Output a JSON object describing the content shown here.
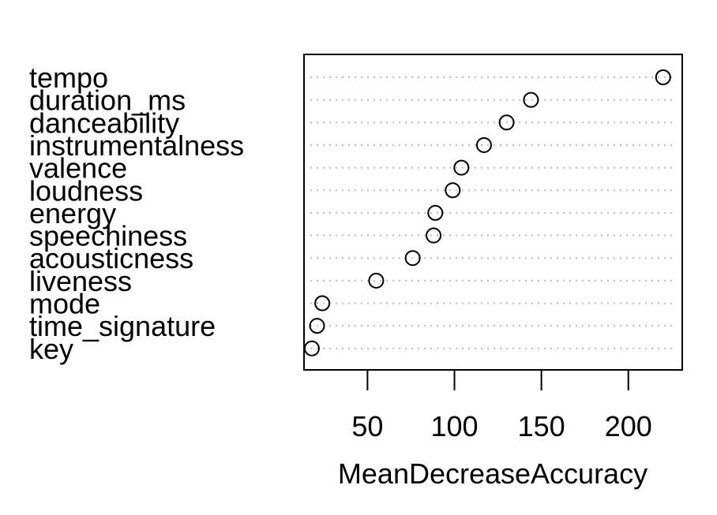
{
  "chart_data": {
    "type": "scatter",
    "title": "",
    "xlabel": "MeanDecreaseAccuracy",
    "ylabel": "",
    "categories": [
      "tempo",
      "duration_ms",
      "danceability",
      "instrumentalness",
      "valence",
      "loudness",
      "energy",
      "speechiness",
      "acousticness",
      "liveness",
      "mode",
      "time_signature",
      "key"
    ],
    "values": [
      220,
      144,
      130,
      117,
      104,
      99,
      89,
      88,
      76,
      55,
      24,
      21,
      18
    ],
    "x_ticks": [
      50,
      100,
      150,
      200
    ],
    "xlim": [
      13.5,
      231
    ],
    "grid": true,
    "legend": "none"
  }
}
